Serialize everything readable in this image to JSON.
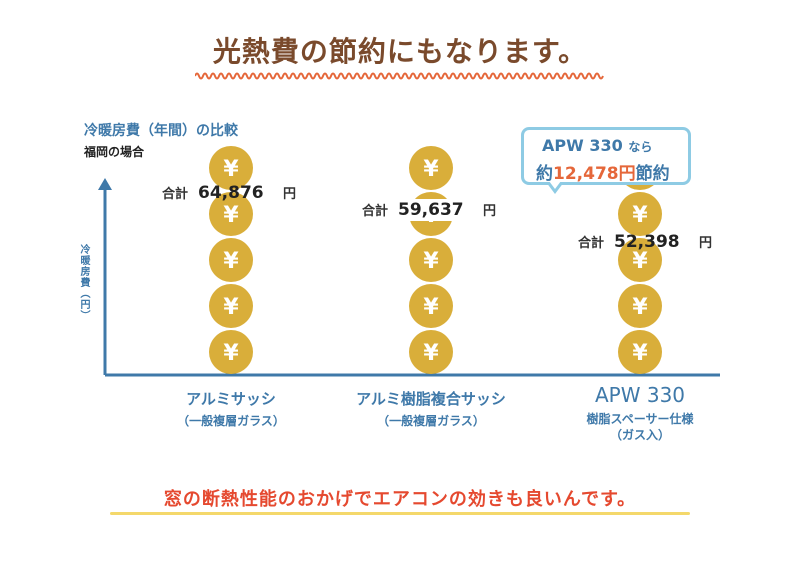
{
  "title": "光熱費の節約にもなります。",
  "chart_title": "冷暖房費（年間）の比較",
  "chart_subtitle": "福岡の場合",
  "ylabel": "冷暖房費（円）",
  "callout": {
    "line1_brand": "APW 330",
    "line1_suffix": "なら",
    "line2_prefix": "約",
    "line2_amount": "12,478",
    "line2_unit": "円",
    "line2_suffix": "節約"
  },
  "footer": "窓の断熱性能のおかげでエアコンの効きも良いんです。",
  "colors": {
    "coin": "#d9ae3a",
    "coin_symbol": "#ffffff",
    "axis": "#3f79a9",
    "arrow": "#e5673a",
    "accent": "#e5673a",
    "wave": "#e5673a"
  },
  "chart_data": {
    "type": "bar",
    "ylabel": "冷暖房費（円）",
    "unit": "円",
    "total_label": "合計",
    "coin_symbol": "¥",
    "categories": [
      {
        "name": "アルミサッシ",
        "sub": "（一般複層ガラス）",
        "value": 64876,
        "value_label": "64,876"
      },
      {
        "name": "アルミ樹脂複合サッシ",
        "sub": "（一般複層ガラス）",
        "value": 59637,
        "value_label": "59,637"
      },
      {
        "name": "APW 330",
        "sub": "樹脂スペーサー仕様",
        "sub2": "（ガス入）",
        "value": 52398,
        "value_label": "52,398"
      }
    ],
    "savings": 12478
  }
}
